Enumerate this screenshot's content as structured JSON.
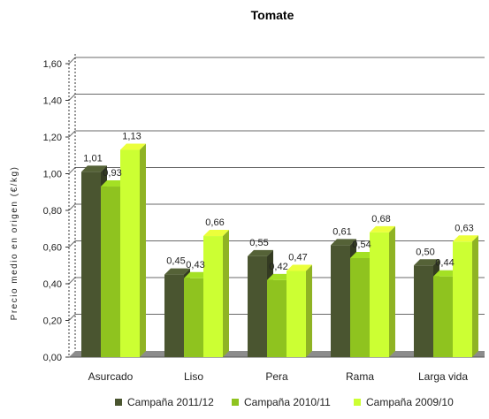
{
  "chart_data": {
    "type": "bar",
    "title": "Tomate",
    "xlabel": "",
    "ylabel": "Precio medio en origen (€/kg)",
    "categories": [
      "Asurcado",
      "Liso",
      "Pera",
      "Rama",
      "Larga vida"
    ],
    "series": [
      {
        "name": "Campaña 2011/12",
        "values": [
          1.01,
          0.45,
          0.55,
          0.61,
          0.5
        ],
        "labels": [
          "1,01",
          "0,45",
          "0,55",
          "0,61",
          "0,50"
        ],
        "color": "#4a5530"
      },
      {
        "name": "Campaña 2010/11",
        "values": [
          0.93,
          0.43,
          0.42,
          0.54,
          0.44
        ],
        "labels": [
          "0,93",
          "0,43",
          "0,42",
          "0,54",
          "0,44"
        ],
        "color": "#8fc31f"
      },
      {
        "name": "Campaña 2009/10",
        "values": [
          1.13,
          0.66,
          0.47,
          0.68,
          0.63
        ],
        "labels": [
          "1,13",
          "0,66",
          "0,47",
          "0,68",
          "0,63"
        ],
        "color": "#ccff33"
      }
    ],
    "yticks": [
      "0,00",
      "0,20",
      "0,40",
      "0,60",
      "0,80",
      "1,00",
      "1,20",
      "1,40",
      "1,60"
    ],
    "ylim": [
      0,
      1.6
    ],
    "grid": true,
    "legend": "bottom",
    "floor_color": "#8c8c8c",
    "grid_color": "#6a6a6a"
  }
}
